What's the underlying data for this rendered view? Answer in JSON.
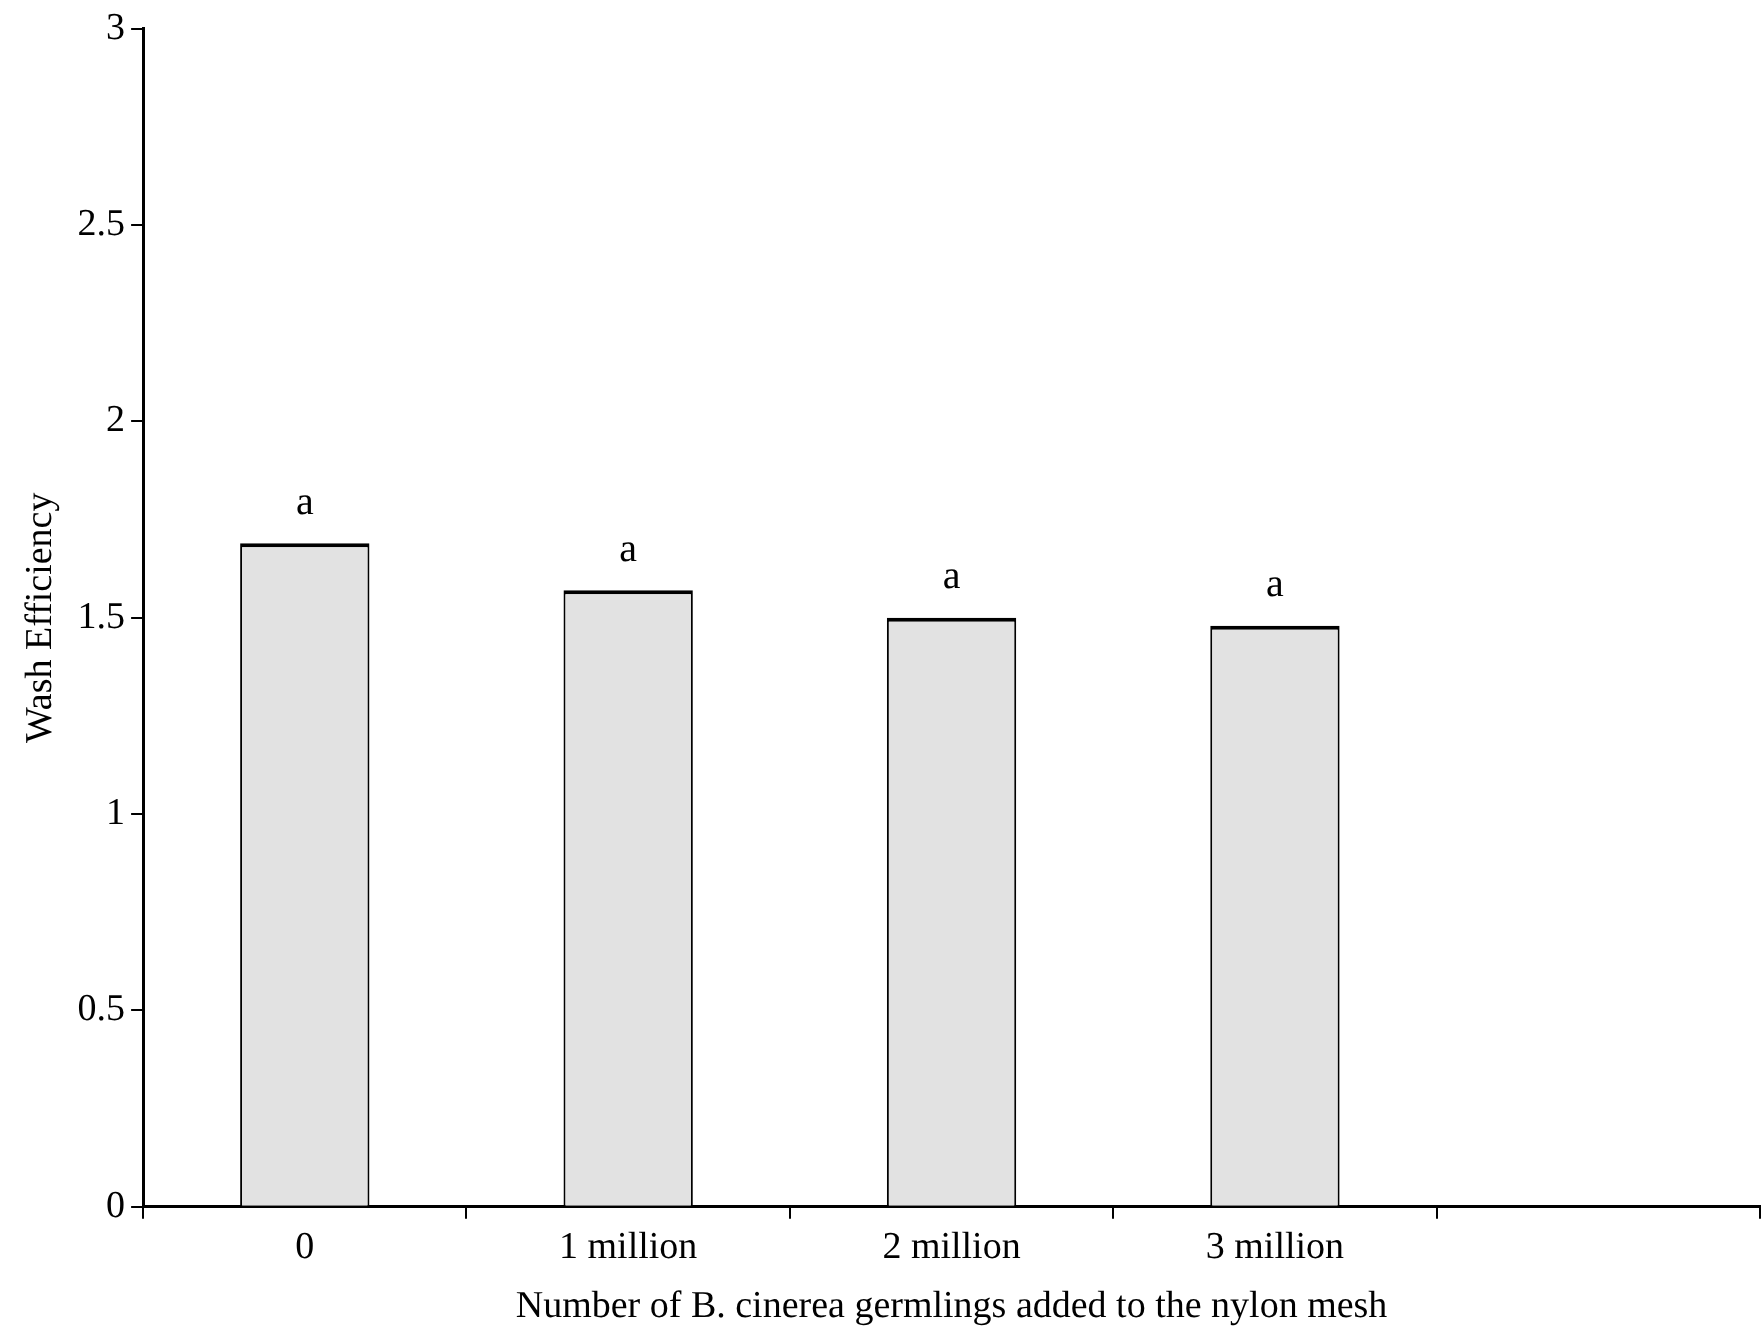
{
  "chart_data": {
    "type": "bar",
    "xlabel": "Number of B. cinerea germlings added to the nylon mesh",
    "ylabel": "Wash Efficiency",
    "categories": [
      "0",
      "1 million",
      "2 million",
      "3 million",
      null
    ],
    "values": [
      1.69,
      1.57,
      1.5,
      1.48,
      null
    ],
    "color": "#e2e2e2",
    "ylim": [
      0,
      3
    ],
    "yticks": [
      0,
      0.5,
      1,
      1.5,
      2,
      2.5,
      3
    ],
    "grid": false,
    "legend": false,
    "annotations": [
      {
        "text": "a",
        "x": "0",
        "y": 1.69
      },
      {
        "text": "a",
        "x": "1 million",
        "y": 1.57
      },
      {
        "text": "a",
        "x": "2 million",
        "y": 1.5
      },
      {
        "text": "a",
        "x": "3 million",
        "y": 1.48
      }
    ]
  }
}
